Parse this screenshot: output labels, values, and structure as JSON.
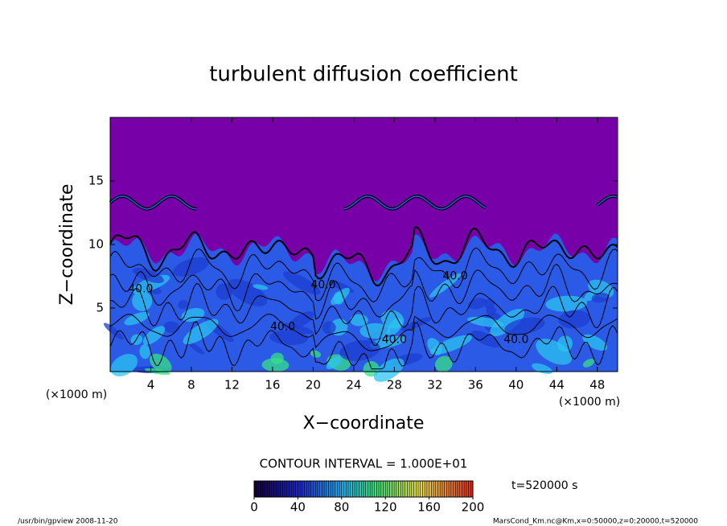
{
  "chart_data": {
    "type": "contour",
    "title": "turbulent diffusion coefficient",
    "x_label": "X−coordinate",
    "y_label": "Z−coordinate",
    "x_unit": "(×1000 m)",
    "y_unit": "(×1000 m)",
    "xlim": [
      0,
      50
    ],
    "xticks": [
      4,
      8,
      12,
      16,
      20,
      24,
      28,
      32,
      36,
      40,
      44,
      48
    ],
    "ylim": [
      0,
      20
    ],
    "yticks": [
      5,
      10,
      15
    ],
    "contour_interval": "CONTOUR INTERVAL = 1.000E+01",
    "contour_labels": [
      "40.0",
      "40.0",
      "40.0",
      "40.0",
      "40.0",
      "40.0"
    ],
    "colorbar": {
      "lim": [
        0,
        200
      ],
      "ticks": [
        0,
        40,
        80,
        120,
        160,
        200
      ]
    },
    "time_label": "t=520000 s",
    "footer_left": "/usr/bin/gpview  2008-11-20",
    "footer_right": "MarsCond_Km.nc@Km,x=0:50000,z=0:20000,t=520000"
  }
}
